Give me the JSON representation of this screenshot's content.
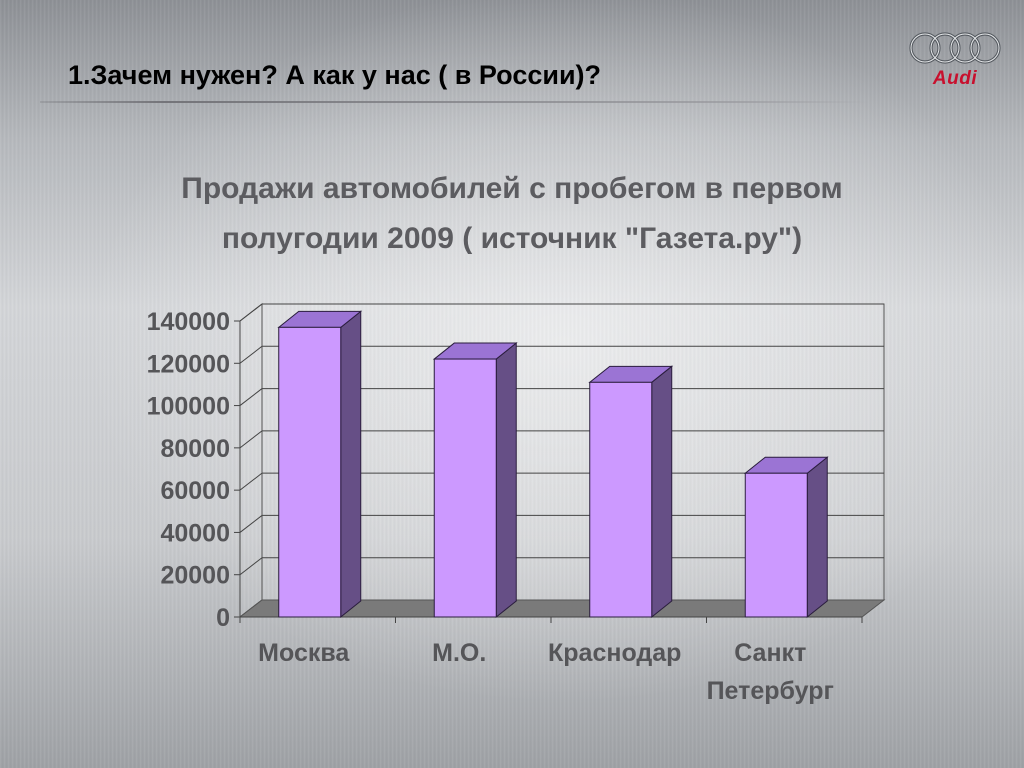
{
  "slide": {
    "title": "1.Зачем нужен? А как у нас ( в России)?",
    "logo_text": "Audi"
  },
  "colors": {
    "bar_front": "#cc99ff",
    "bar_side": "#664f86",
    "bar_top": "#9b74d4",
    "floor": "#7a7a7a",
    "brand_red": "#c8102e"
  },
  "chart_data": {
    "type": "bar",
    "style": "3d",
    "title_lines": [
      "Продажи автомобилей с пробегом в первом",
      "полугодии 2009 ( источник \"Газета.ру\")"
    ],
    "categories": [
      [
        "Москва"
      ],
      [
        "М.О."
      ],
      [
        "Краснодар"
      ],
      [
        "Санкт",
        "Петербург"
      ]
    ],
    "values": [
      137000,
      122000,
      111000,
      68000
    ],
    "yticks": [
      "0",
      "20000",
      "40000",
      "60000",
      "80000",
      "100000",
      "120000",
      "140000"
    ],
    "ylim": [
      0,
      140000
    ],
    "grid": true,
    "legend": "none"
  }
}
